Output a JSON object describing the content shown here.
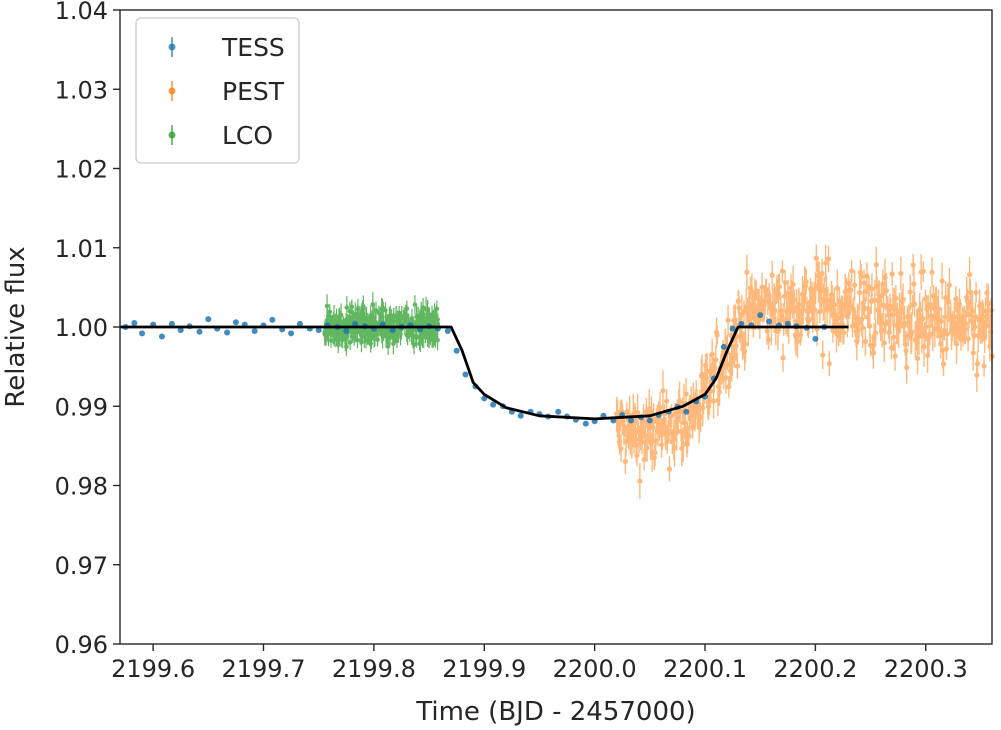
{
  "chart_data": {
    "type": "scatter",
    "title": "",
    "xlabel": "Time (BJD - 2457000)",
    "ylabel": "Relative flux",
    "xlim": [
      2199.57,
      2200.36
    ],
    "ylim": [
      0.96,
      1.04
    ],
    "xticks": [
      2199.6,
      2199.7,
      2199.8,
      2199.9,
      2200.0,
      2200.1,
      2200.2,
      2200.3
    ],
    "xtick_labels": [
      "2199.6",
      "2199.7",
      "2199.8",
      "2199.9",
      "2200.0",
      "2200.1",
      "2200.2",
      "2200.3"
    ],
    "yticks": [
      0.96,
      0.97,
      0.98,
      0.99,
      1.0,
      1.01,
      1.02,
      1.03,
      1.04
    ],
    "ytick_labels": [
      "0.96",
      "0.97",
      "0.98",
      "0.99",
      "1.00",
      "1.01",
      "1.02",
      "1.03",
      "1.04"
    ],
    "legend_position": "upper-left",
    "grid": false,
    "series": [
      {
        "name": "TESS",
        "color": "#1f77b4",
        "x": [
          2199.575,
          2199.583,
          2199.59,
          2199.6,
          2199.608,
          2199.617,
          2199.625,
          2199.633,
          2199.642,
          2199.65,
          2199.658,
          2199.667,
          2199.675,
          2199.683,
          2199.692,
          2199.7,
          2199.708,
          2199.717,
          2199.725,
          2199.733,
          2199.742,
          2199.75,
          2199.758,
          2199.767,
          2199.775,
          2199.783,
          2199.792,
          2199.8,
          2199.808,
          2199.817,
          2199.825,
          2199.833,
          2199.842,
          2199.85,
          2199.858,
          2199.867,
          2199.875,
          2199.883,
          2199.892,
          2199.9,
          2199.908,
          2199.917,
          2199.925,
          2199.933,
          2199.942,
          2199.95,
          2199.958,
          2199.967,
          2199.975,
          2199.983,
          2199.992,
          2200.0,
          2200.008,
          2200.017,
          2200.025,
          2200.033,
          2200.042,
          2200.05,
          2200.058,
          2200.067,
          2200.075,
          2200.083,
          2200.092,
          2200.1,
          2200.108,
          2200.117,
          2200.125,
          2200.133,
          2200.142,
          2200.15,
          2200.158,
          2200.167,
          2200.175,
          2200.183,
          2200.192,
          2200.2,
          2200.208
        ],
        "y": [
          1.0,
          1.0005,
          0.9992,
          1.0003,
          0.9988,
          1.0004,
          0.9996,
          1.0001,
          0.9994,
          1.001,
          0.9998,
          0.9993,
          1.0006,
          1.0003,
          0.9995,
          1.0002,
          1.0009,
          0.9997,
          0.9992,
          1.0004,
          0.9998,
          0.9996,
          1.0002,
          1.0,
          0.9995,
          1.0004,
          1.0001,
          0.9998,
          1.0003,
          0.9996,
          1.0,
          1.0002,
          0.9997,
          1.0001,
          0.9998,
          0.9995,
          0.997,
          0.994,
          0.9925,
          0.991,
          0.9902,
          0.99,
          0.9893,
          0.9888,
          0.9893,
          0.989,
          0.9887,
          0.9893,
          0.9887,
          0.9883,
          0.9878,
          0.9881,
          0.9888,
          0.9882,
          0.9889,
          0.9882,
          0.9886,
          0.9882,
          0.9889,
          0.9893,
          0.9899,
          0.9893,
          0.9906,
          0.9912,
          0.9935,
          0.9975,
          0.9998,
          1.0004,
          1.0002,
          1.0015,
          1.0007,
          1.0002,
          1.0004,
          1.0001,
          0.9999,
          0.9985,
          1.0
        ]
      },
      {
        "name": "PEST",
        "color": "#ff7f0e",
        "x_range": [
          2200.02,
          2200.36
        ],
        "trend": [
          [
            2200.02,
            0.9868
          ],
          [
            2200.05,
            0.9862
          ],
          [
            2200.08,
            0.988
          ],
          [
            2200.1,
            0.991
          ],
          [
            2200.12,
            0.997
          ],
          [
            2200.14,
            1.002
          ],
          [
            2200.17,
            1.0025
          ],
          [
            2200.2,
            1.003
          ],
          [
            2200.25,
            1.002
          ],
          [
            2200.3,
            1.001
          ],
          [
            2200.36,
            0.999
          ]
        ]
      },
      {
        "name": "LCO",
        "color": "#2ca02c",
        "x_range": [
          2199.755,
          2199.858
        ],
        "level": 1.0001
      }
    ],
    "model": {
      "name": "model",
      "color": "#000000",
      "x": [
        2199.57,
        2199.87,
        2199.88,
        2199.89,
        2199.9,
        2199.92,
        2199.95,
        2200.0,
        2200.05,
        2200.08,
        2200.1,
        2200.11,
        2200.12,
        2200.13,
        2200.23
      ],
      "y": [
        1.0,
        1.0,
        0.997,
        0.993,
        0.9915,
        0.9898,
        0.9888,
        0.9884,
        0.9888,
        0.99,
        0.9915,
        0.9935,
        0.997,
        1.0,
        1.0
      ]
    }
  }
}
